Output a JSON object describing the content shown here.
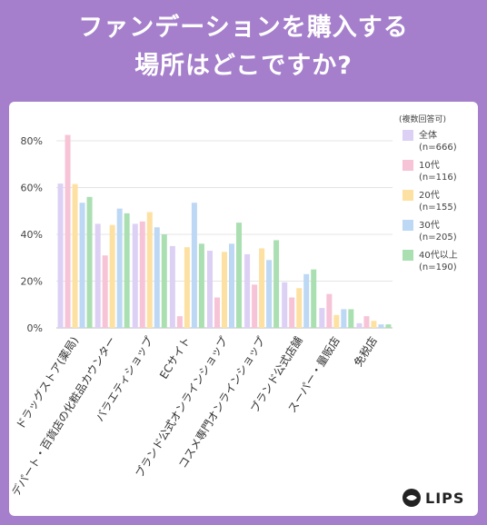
{
  "title": {
    "line1": "ファンデーションを購入する",
    "line2": "場所はどこですか?"
  },
  "legend": {
    "title": "(複数回答可)",
    "items": [
      {
        "name": "全体",
        "n": "(n=666)",
        "color": "#ddd0f5"
      },
      {
        "name": "10代",
        "n": "(n=116)",
        "color": "#f7c3d7"
      },
      {
        "name": "20代",
        "n": "(n=155)",
        "color": "#fde1a3"
      },
      {
        "name": "30代",
        "n": "(n=205)",
        "color": "#bcd8f4"
      },
      {
        "name": "40代以上",
        "n": "(n=190)",
        "color": "#aadfb2"
      }
    ]
  },
  "logo": {
    "text": "LIPS",
    "icon": "lips-logo-icon"
  },
  "chart_data": {
    "type": "bar",
    "ylim": [
      0,
      80
    ],
    "y_ticks": [
      "0%",
      "20%",
      "40%",
      "60%",
      "80%"
    ],
    "grid": true,
    "legend_position": "right",
    "categories": [
      "ドラッグストア(薬局)",
      "デパート・百貨店の化粧品カウンター",
      "バラエティショップ",
      "ECサイト",
      "ブランド公式オンラインショップ",
      "コスメ専門オンラインショップ",
      "ブランド公式店舗",
      "スーパー・量販店",
      "免税店"
    ],
    "series": [
      {
        "name": "全体",
        "color": "#ddd0f5",
        "values": [
          61.7,
          44.5,
          44.5,
          35.0,
          33.0,
          31.5,
          19.5,
          8.5,
          2.0
        ]
      },
      {
        "name": "10代",
        "color": "#f7c3d7",
        "values": [
          82.5,
          31.0,
          45.5,
          5.0,
          13.0,
          18.5,
          13.0,
          14.5,
          5.0
        ]
      },
      {
        "name": "20代",
        "color": "#fde1a3",
        "values": [
          61.5,
          44.0,
          49.5,
          34.5,
          32.5,
          34.0,
          17.0,
          5.5,
          3.0
        ]
      },
      {
        "name": "30代",
        "color": "#bcd8f4",
        "values": [
          53.5,
          51.0,
          43.0,
          53.5,
          36.0,
          29.0,
          23.0,
          8.0,
          1.5
        ]
      },
      {
        "name": "40代以上",
        "color": "#aadfb2",
        "values": [
          56.0,
          49.0,
          40.0,
          36.0,
          45.0,
          37.5,
          25.0,
          8.0,
          1.5
        ]
      }
    ]
  }
}
